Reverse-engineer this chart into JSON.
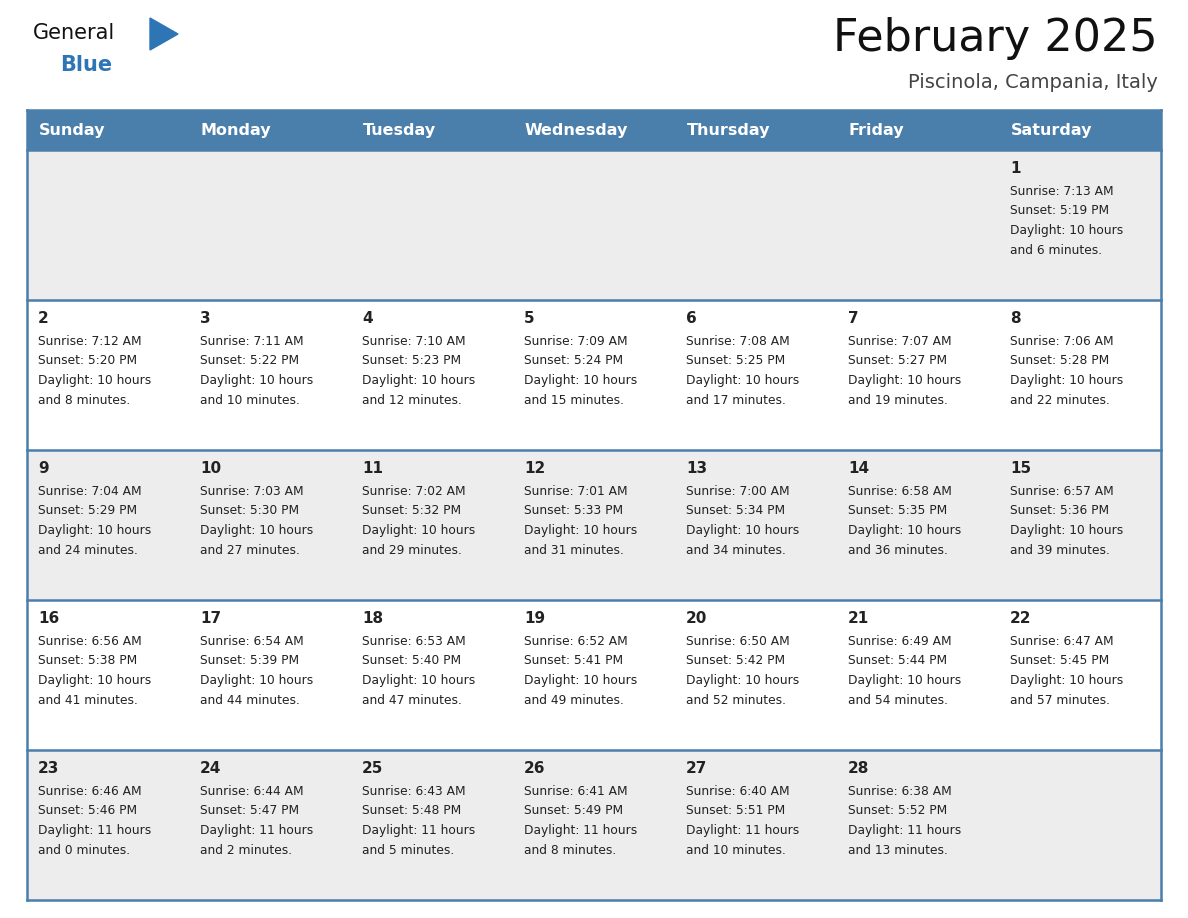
{
  "title": "February 2025",
  "subtitle": "Piscinola, Campania, Italy",
  "header_bg": "#4A7EAB",
  "header_text_color": "#FFFFFF",
  "weekdays": [
    "Sunday",
    "Monday",
    "Tuesday",
    "Wednesday",
    "Thursday",
    "Friday",
    "Saturday"
  ],
  "row_bg_light": "#EDEDED",
  "row_bg_white": "#FFFFFF",
  "row_bgs": [
    "#EDEDED",
    "#FFFFFF",
    "#EDEDED",
    "#FFFFFF",
    "#EDEDED"
  ],
  "border_color": "#4A7EAB",
  "day_number_color": "#222222",
  "cell_text_color": "#222222",
  "title_color": "#111111",
  "subtitle_color": "#444444",
  "logo_general_color": "#111111",
  "logo_blue_color": "#2E75B6",
  "calendar_data": [
    [
      null,
      null,
      null,
      null,
      null,
      null,
      {
        "day": "1",
        "sunrise": "7:13 AM",
        "sunset": "5:19 PM",
        "daylight": "10 hours",
        "daylight2": "and 6 minutes."
      }
    ],
    [
      {
        "day": "2",
        "sunrise": "7:12 AM",
        "sunset": "5:20 PM",
        "daylight": "10 hours",
        "daylight2": "and 8 minutes."
      },
      {
        "day": "3",
        "sunrise": "7:11 AM",
        "sunset": "5:22 PM",
        "daylight": "10 hours",
        "daylight2": "and 10 minutes."
      },
      {
        "day": "4",
        "sunrise": "7:10 AM",
        "sunset": "5:23 PM",
        "daylight": "10 hours",
        "daylight2": "and 12 minutes."
      },
      {
        "day": "5",
        "sunrise": "7:09 AM",
        "sunset": "5:24 PM",
        "daylight": "10 hours",
        "daylight2": "and 15 minutes."
      },
      {
        "day": "6",
        "sunrise": "7:08 AM",
        "sunset": "5:25 PM",
        "daylight": "10 hours",
        "daylight2": "and 17 minutes."
      },
      {
        "day": "7",
        "sunrise": "7:07 AM",
        "sunset": "5:27 PM",
        "daylight": "10 hours",
        "daylight2": "and 19 minutes."
      },
      {
        "day": "8",
        "sunrise": "7:06 AM",
        "sunset": "5:28 PM",
        "daylight": "10 hours",
        "daylight2": "and 22 minutes."
      }
    ],
    [
      {
        "day": "9",
        "sunrise": "7:04 AM",
        "sunset": "5:29 PM",
        "daylight": "10 hours",
        "daylight2": "and 24 minutes."
      },
      {
        "day": "10",
        "sunrise": "7:03 AM",
        "sunset": "5:30 PM",
        "daylight": "10 hours",
        "daylight2": "and 27 minutes."
      },
      {
        "day": "11",
        "sunrise": "7:02 AM",
        "sunset": "5:32 PM",
        "daylight": "10 hours",
        "daylight2": "and 29 minutes."
      },
      {
        "day": "12",
        "sunrise": "7:01 AM",
        "sunset": "5:33 PM",
        "daylight": "10 hours",
        "daylight2": "and 31 minutes."
      },
      {
        "day": "13",
        "sunrise": "7:00 AM",
        "sunset": "5:34 PM",
        "daylight": "10 hours",
        "daylight2": "and 34 minutes."
      },
      {
        "day": "14",
        "sunrise": "6:58 AM",
        "sunset": "5:35 PM",
        "daylight": "10 hours",
        "daylight2": "and 36 minutes."
      },
      {
        "day": "15",
        "sunrise": "6:57 AM",
        "sunset": "5:36 PM",
        "daylight": "10 hours",
        "daylight2": "and 39 minutes."
      }
    ],
    [
      {
        "day": "16",
        "sunrise": "6:56 AM",
        "sunset": "5:38 PM",
        "daylight": "10 hours",
        "daylight2": "and 41 minutes."
      },
      {
        "day": "17",
        "sunrise": "6:54 AM",
        "sunset": "5:39 PM",
        "daylight": "10 hours",
        "daylight2": "and 44 minutes."
      },
      {
        "day": "18",
        "sunrise": "6:53 AM",
        "sunset": "5:40 PM",
        "daylight": "10 hours",
        "daylight2": "and 47 minutes."
      },
      {
        "day": "19",
        "sunrise": "6:52 AM",
        "sunset": "5:41 PM",
        "daylight": "10 hours",
        "daylight2": "and 49 minutes."
      },
      {
        "day": "20",
        "sunrise": "6:50 AM",
        "sunset": "5:42 PM",
        "daylight": "10 hours",
        "daylight2": "and 52 minutes."
      },
      {
        "day": "21",
        "sunrise": "6:49 AM",
        "sunset": "5:44 PM",
        "daylight": "10 hours",
        "daylight2": "and 54 minutes."
      },
      {
        "day": "22",
        "sunrise": "6:47 AM",
        "sunset": "5:45 PM",
        "daylight": "10 hours",
        "daylight2": "and 57 minutes."
      }
    ],
    [
      {
        "day": "23",
        "sunrise": "6:46 AM",
        "sunset": "5:46 PM",
        "daylight": "11 hours",
        "daylight2": "and 0 minutes."
      },
      {
        "day": "24",
        "sunrise": "6:44 AM",
        "sunset": "5:47 PM",
        "daylight": "11 hours",
        "daylight2": "and 2 minutes."
      },
      {
        "day": "25",
        "sunrise": "6:43 AM",
        "sunset": "5:48 PM",
        "daylight": "11 hours",
        "daylight2": "and 5 minutes."
      },
      {
        "day": "26",
        "sunrise": "6:41 AM",
        "sunset": "5:49 PM",
        "daylight": "11 hours",
        "daylight2": "and 8 minutes."
      },
      {
        "day": "27",
        "sunrise": "6:40 AM",
        "sunset": "5:51 PM",
        "daylight": "11 hours",
        "daylight2": "and 10 minutes."
      },
      {
        "day": "28",
        "sunrise": "6:38 AM",
        "sunset": "5:52 PM",
        "daylight": "11 hours",
        "daylight2": "and 13 minutes."
      },
      null
    ]
  ]
}
